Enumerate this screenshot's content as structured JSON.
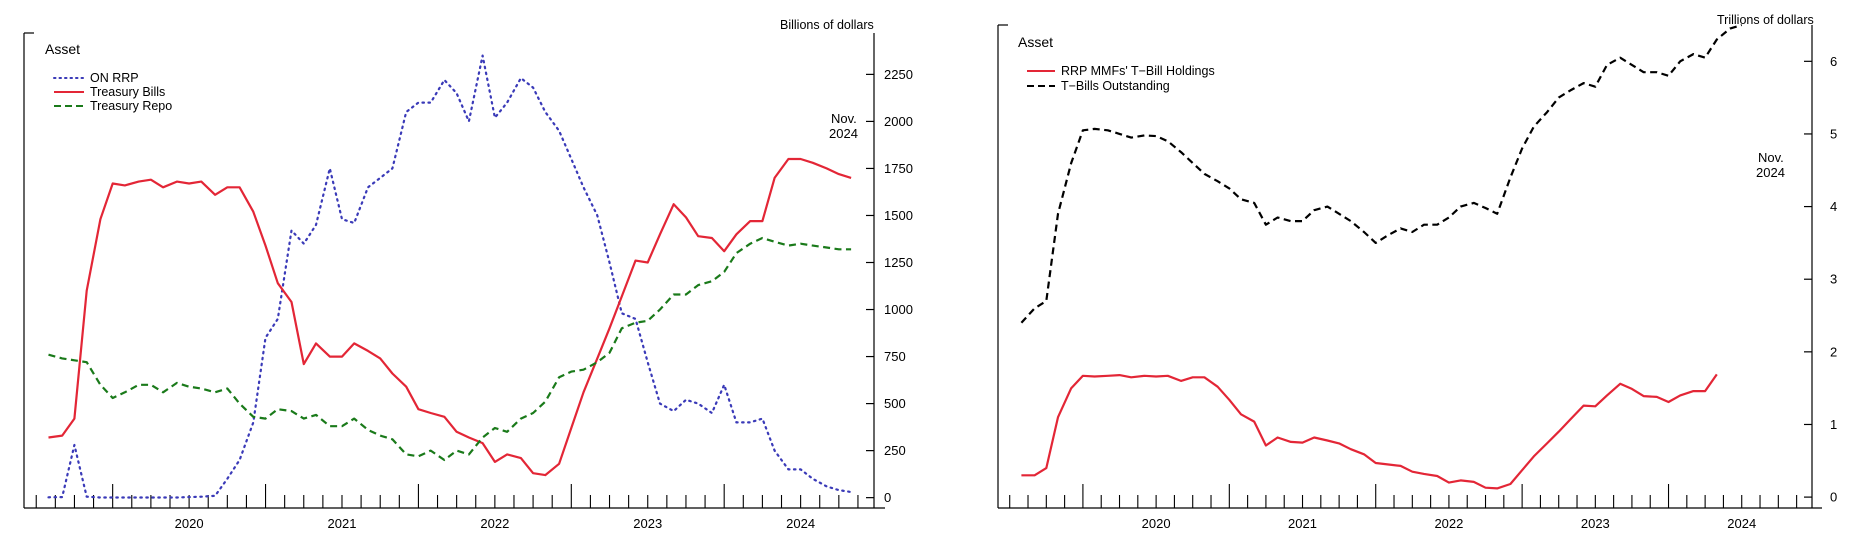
{
  "chart_data": [
    {
      "type": "line",
      "title_label": "Asset",
      "unit": "Billions of dollars",
      "annotation": [
        "Nov.",
        "2024"
      ],
      "x_range": [
        2019.42,
        2024.98
      ],
      "ylim": [
        -55,
        2470
      ],
      "y_ticks": [
        0,
        250,
        500,
        750,
        1000,
        1250,
        1500,
        1750,
        2000,
        2250
      ],
      "y_tick_labels": [
        "0",
        "250",
        "500",
        "750",
        "1000",
        "1250",
        "1500",
        "1750",
        "2000",
        "2250"
      ],
      "year_labels": [
        "2020",
        "2021",
        "2022",
        "2023",
        "2024"
      ],
      "series": [
        {
          "name": "ON RRP",
          "color": "#3a3ab8",
          "style": "dotted",
          "x": [
            2019.58,
            2019.67,
            2019.75,
            2019.83,
            2019.92,
            2020.0,
            2020.08,
            2020.17,
            2020.25,
            2020.33,
            2020.42,
            2020.5,
            2020.58,
            2020.67,
            2020.75,
            2020.83,
            2020.92,
            2021.0,
            2021.08,
            2021.17,
            2021.25,
            2021.33,
            2021.42,
            2021.5,
            2021.58,
            2021.67,
            2021.75,
            2021.83,
            2021.92,
            2022.0,
            2022.08,
            2022.17,
            2022.25,
            2022.33,
            2022.42,
            2022.5,
            2022.58,
            2022.67,
            2022.75,
            2022.83,
            2022.92,
            2023.0,
            2023.08,
            2023.17,
            2023.25,
            2023.33,
            2023.42,
            2023.5,
            2023.58,
            2023.67,
            2023.75,
            2023.83,
            2023.92,
            2024.0,
            2024.08,
            2024.17,
            2024.25,
            2024.33,
            2024.42,
            2024.5,
            2024.58,
            2024.67,
            2024.75,
            2024.83
          ],
          "y": [
            2,
            3,
            280,
            5,
            1,
            1,
            1,
            1,
            1,
            1,
            1,
            3,
            5,
            10,
            100,
            200,
            400,
            850,
            950,
            1420,
            1350,
            1450,
            1750,
            1480,
            1460,
            1650,
            1700,
            1750,
            2050,
            2100,
            2100,
            2220,
            2150,
            2000,
            2350,
            2020,
            2100,
            2230,
            2180,
            2050,
            1950,
            1800,
            1650,
            1500,
            1250,
            980,
            950,
            720,
            500,
            460,
            520,
            500,
            450,
            600,
            400,
            400,
            420,
            250,
            150,
            150,
            100,
            60,
            40,
            30
          ]
        },
        {
          "name": "Treasury Bills",
          "color": "#e32636",
          "style": "solid",
          "x": [
            2019.58,
            2019.67,
            2019.75,
            2019.83,
            2019.92,
            2020.0,
            2020.08,
            2020.17,
            2020.25,
            2020.33,
            2020.42,
            2020.5,
            2020.58,
            2020.67,
            2020.75,
            2020.83,
            2020.92,
            2021.0,
            2021.08,
            2021.17,
            2021.25,
            2021.33,
            2021.42,
            2021.5,
            2021.58,
            2021.67,
            2021.75,
            2021.83,
            2021.92,
            2022.0,
            2022.08,
            2022.17,
            2022.25,
            2022.33,
            2022.42,
            2022.5,
            2022.58,
            2022.67,
            2022.75,
            2022.83,
            2022.92,
            2023.0,
            2023.08,
            2023.17,
            2023.25,
            2023.33,
            2023.42,
            2023.5,
            2023.58,
            2023.67,
            2023.75,
            2023.83,
            2023.92,
            2024.0,
            2024.08,
            2024.17,
            2024.25,
            2024.33,
            2024.42,
            2024.5,
            2024.58,
            2024.67,
            2024.75,
            2024.83
          ],
          "y": [
            320,
            330,
            420,
            1100,
            1480,
            1670,
            1660,
            1680,
            1690,
            1650,
            1680,
            1670,
            1680,
            1610,
            1650,
            1650,
            1520,
            1340,
            1140,
            1040,
            710,
            820,
            750,
            750,
            820,
            780,
            740,
            660,
            590,
            470,
            450,
            430,
            350,
            320,
            290,
            190,
            230,
            210,
            130,
            120,
            180,
            370,
            560,
            740,
            900,
            1070,
            1260,
            1250,
            1400,
            1560,
            1490,
            1390,
            1380,
            1310,
            1400,
            1470,
            1470,
            1700,
            1800,
            1800,
            1780,
            1750,
            1720,
            1700
          ]
        },
        {
          "name": "Treasury Repo",
          "color": "#1a7a1a",
          "style": "dashed",
          "x": [
            2019.58,
            2019.67,
            2019.75,
            2019.83,
            2019.92,
            2020.0,
            2020.08,
            2020.17,
            2020.25,
            2020.33,
            2020.42,
            2020.5,
            2020.58,
            2020.67,
            2020.75,
            2020.83,
            2020.92,
            2021.0,
            2021.08,
            2021.17,
            2021.25,
            2021.33,
            2021.42,
            2021.5,
            2021.58,
            2021.67,
            2021.75,
            2021.83,
            2021.92,
            2022.0,
            2022.08,
            2022.17,
            2022.25,
            2022.33,
            2022.42,
            2022.5,
            2022.58,
            2022.67,
            2022.75,
            2022.83,
            2022.92,
            2023.0,
            2023.08,
            2023.17,
            2023.25,
            2023.33,
            2023.42,
            2023.5,
            2023.58,
            2023.67,
            2023.75,
            2023.83,
            2023.92,
            2024.0,
            2024.08,
            2024.17,
            2024.25,
            2024.33,
            2024.42,
            2024.5,
            2024.58,
            2024.67,
            2024.75,
            2024.83
          ],
          "y": [
            760,
            740,
            730,
            720,
            600,
            530,
            560,
            600,
            600,
            560,
            610,
            590,
            580,
            560,
            580,
            500,
            430,
            420,
            470,
            460,
            420,
            440,
            380,
            380,
            420,
            360,
            330,
            310,
            230,
            220,
            250,
            200,
            250,
            230,
            320,
            370,
            350,
            420,
            450,
            510,
            640,
            670,
            680,
            720,
            770,
            900,
            930,
            940,
            1000,
            1080,
            1080,
            1130,
            1150,
            1200,
            1300,
            1350,
            1380,
            1360,
            1340,
            1350,
            1340,
            1330,
            1320,
            1320
          ]
        }
      ]
    },
    {
      "type": "line",
      "title_label": "Asset",
      "unit": "Trillions of dollars",
      "annotation": [
        "Nov.",
        "2024"
      ],
      "x_range": [
        2019.42,
        2024.98
      ],
      "ylim": [
        -0.15,
        6.5
      ],
      "y_ticks": [
        0,
        1,
        2,
        3,
        4,
        5,
        6
      ],
      "y_tick_labels": [
        "0",
        "1",
        "2",
        "3",
        "4",
        "5",
        "6"
      ],
      "year_labels": [
        "2020",
        "2021",
        "2022",
        "2023",
        "2024"
      ],
      "series": [
        {
          "name": "RRP MMFs' T-Bill Holdings",
          "color": "#e32636",
          "style": "solid",
          "x": [
            2019.58,
            2019.67,
            2019.75,
            2019.83,
            2019.92,
            2020.0,
            2020.08,
            2020.17,
            2020.25,
            2020.33,
            2020.42,
            2020.5,
            2020.58,
            2020.67,
            2020.75,
            2020.83,
            2020.92,
            2021.0,
            2021.08,
            2021.17,
            2021.25,
            2021.33,
            2021.42,
            2021.5,
            2021.58,
            2021.67,
            2021.75,
            2021.83,
            2021.92,
            2022.0,
            2022.08,
            2022.17,
            2022.25,
            2022.33,
            2022.42,
            2022.5,
            2022.58,
            2022.67,
            2022.75,
            2022.83,
            2022.92,
            2023.0,
            2023.08,
            2023.17,
            2023.25,
            2023.33,
            2023.42,
            2023.5,
            2023.58,
            2023.67,
            2023.75,
            2023.83,
            2023.92,
            2024.0,
            2024.08,
            2024.17,
            2024.25,
            2024.33
          ],
          "y": [
            0.3,
            0.3,
            0.4,
            1.1,
            1.5,
            1.67,
            1.66,
            1.67,
            1.68,
            1.65,
            1.67,
            1.66,
            1.67,
            1.6,
            1.65,
            1.65,
            1.52,
            1.34,
            1.14,
            1.04,
            0.71,
            0.82,
            0.76,
            0.75,
            0.82,
            0.78,
            0.74,
            0.66,
            0.59,
            0.47,
            0.45,
            0.43,
            0.35,
            0.32,
            0.29,
            0.2,
            0.23,
            0.21,
            0.13,
            0.12,
            0.18,
            0.37,
            0.56,
            0.74,
            0.9,
            1.07,
            1.26,
            1.25,
            1.4,
            1.56,
            1.49,
            1.39,
            1.38,
            1.31,
            1.4,
            1.46,
            1.46,
            1.69
          ]
        },
        {
          "name": "T-Bills Outstanding",
          "color": "#000000",
          "style": "dashed",
          "x": [
            2019.58,
            2019.67,
            2019.75,
            2019.83,
            2019.92,
            2020.0,
            2020.08,
            2020.17,
            2020.25,
            2020.33,
            2020.42,
            2020.5,
            2020.58,
            2020.67,
            2020.75,
            2020.83,
            2020.92,
            2021.0,
            2021.08,
            2021.17,
            2021.25,
            2021.33,
            2021.42,
            2021.5,
            2021.58,
            2021.67,
            2021.75,
            2021.83,
            2021.92,
            2022.0,
            2022.08,
            2022.17,
            2022.25,
            2022.33,
            2022.42,
            2022.5,
            2022.58,
            2022.67,
            2022.75,
            2022.83,
            2022.92,
            2023.0,
            2023.08,
            2023.17,
            2023.25,
            2023.33,
            2023.42,
            2023.5,
            2023.58,
            2023.67,
            2023.75,
            2023.83,
            2023.92,
            2024.0,
            2024.08,
            2024.17,
            2024.25,
            2024.33,
            2024.42,
            2024.5
          ],
          "y": [
            2.4,
            2.6,
            2.7,
            3.9,
            4.6,
            5.05,
            5.07,
            5.05,
            5.0,
            4.95,
            4.98,
            4.97,
            4.9,
            4.75,
            4.6,
            4.45,
            4.35,
            4.25,
            4.1,
            4.05,
            3.75,
            3.85,
            3.8,
            3.8,
            3.95,
            4.0,
            3.9,
            3.8,
            3.65,
            3.5,
            3.6,
            3.7,
            3.65,
            3.75,
            3.75,
            3.85,
            4.0,
            4.05,
            3.98,
            3.9,
            4.4,
            4.8,
            5.1,
            5.3,
            5.5,
            5.6,
            5.7,
            5.65,
            5.95,
            6.05,
            5.95,
            5.85,
            5.85,
            5.8,
            6.0,
            6.1,
            6.05,
            6.3,
            6.45,
            6.5
          ]
        }
      ]
    }
  ],
  "panels": [
    {
      "unit": "Billions of dollars",
      "asset": "Asset",
      "nov": "Nov.",
      "year": "2024",
      "legend": [
        "ON RRP",
        "Treasury Bills",
        "Treasury Repo"
      ]
    },
    {
      "unit": "Trillions of dollars",
      "asset": "Asset",
      "nov": "Nov.",
      "year": "2024",
      "legend": [
        "RRP MMFs' T−Bill Holdings",
        "T−Bills Outstanding"
      ]
    }
  ]
}
